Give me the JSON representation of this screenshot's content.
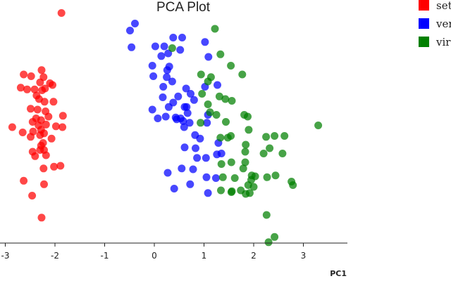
{
  "chart_data": {
    "type": "scatter",
    "title": "PCA Plot",
    "xlabel": "PC1",
    "ylabel": "",
    "xlim": [
      -3.05,
      3.9
    ],
    "ylim": [
      -1.3,
      1.45
    ],
    "xticks": [
      -3,
      -2,
      -1,
      0,
      1,
      2,
      3
    ],
    "xtick_labels": [
      "-3",
      "-2",
      "-1",
      "0",
      "1",
      "2",
      "3"
    ],
    "grid": false,
    "legend": "top-right",
    "series": [
      {
        "name": "setosa",
        "color": "#ff0000",
        "points": [
          [
            -1.87,
            1.3
          ],
          [
            -2.63,
            0.6
          ],
          [
            -2.48,
            0.58
          ],
          [
            -2.27,
            0.65
          ],
          [
            -2.23,
            0.57
          ],
          [
            -2.3,
            0.51
          ],
          [
            -2.1,
            0.5
          ],
          [
            -2.05,
            0.48
          ],
          [
            -2.2,
            0.44
          ],
          [
            -2.26,
            0.42
          ],
          [
            -2.56,
            0.43
          ],
          [
            -2.69,
            0.45
          ],
          [
            -2.41,
            0.43
          ],
          [
            -2.37,
            0.36
          ],
          [
            -2.32,
            0.32
          ],
          [
            -2.21,
            0.29
          ],
          [
            -2.03,
            0.29
          ],
          [
            -2.49,
            0.21
          ],
          [
            -2.35,
            0.2
          ],
          [
            -2.19,
            0.18
          ],
          [
            -2.38,
            0.1
          ],
          [
            -2.28,
            0.08
          ],
          [
            -1.84,
            0.13
          ],
          [
            -2.13,
            0.12
          ],
          [
            -2.45,
            0.06
          ],
          [
            -2.33,
            0.02
          ],
          [
            -2.18,
            0.03
          ],
          [
            -2.86,
            0.0
          ],
          [
            -2.65,
            -0.06
          ],
          [
            -2.44,
            -0.05
          ],
          [
            -2.28,
            -0.03
          ],
          [
            -2.22,
            -0.07
          ],
          [
            -1.98,
            0.01
          ],
          [
            -1.85,
            0.0
          ],
          [
            -2.3,
            -0.09
          ],
          [
            -2.49,
            -0.11
          ],
          [
            -2.07,
            -0.13
          ],
          [
            -2.24,
            -0.18
          ],
          [
            -2.28,
            -0.21
          ],
          [
            -2.3,
            -0.26
          ],
          [
            -2.22,
            -0.26
          ],
          [
            -2.45,
            -0.28
          ],
          [
            -2.18,
            -0.32
          ],
          [
            -2.4,
            -0.33
          ],
          [
            -1.89,
            -0.44
          ],
          [
            -2.02,
            -0.45
          ],
          [
            -2.23,
            -0.47
          ],
          [
            -2.63,
            -0.61
          ],
          [
            -2.22,
            -0.65
          ],
          [
            -2.46,
            -0.78
          ],
          [
            -2.27,
            -1.03
          ]
        ]
      },
      {
        "name": "versicolor",
        "color": "#0000ff",
        "points": [
          [
            -0.12,
            1.54
          ],
          [
            -0.39,
            1.18
          ],
          [
            -0.49,
            1.1
          ],
          [
            -0.46,
            0.91
          ],
          [
            0.38,
            1.02
          ],
          [
            0.56,
            1.02
          ],
          [
            0.2,
            0.92
          ],
          [
            0.02,
            0.92
          ],
          [
            0.28,
            0.84
          ],
          [
            0.14,
            0.81
          ],
          [
            0.52,
            0.88
          ],
          [
            1.02,
            0.97
          ],
          [
            1.09,
            0.8
          ],
          [
            0.3,
            0.69
          ],
          [
            -0.04,
            0.7
          ],
          [
            -0.02,
            0.58
          ],
          [
            0.26,
            0.65
          ],
          [
            0.25,
            0.57
          ],
          [
            0.36,
            0.52
          ],
          [
            0.18,
            0.46
          ],
          [
            0.17,
            0.34
          ],
          [
            1.02,
            0.46
          ],
          [
            1.27,
            0.48
          ],
          [
            0.64,
            0.44
          ],
          [
            0.48,
            0.35
          ],
          [
            0.73,
            0.38
          ],
          [
            0.8,
            0.31
          ],
          [
            0.61,
            0.23
          ],
          [
            0.38,
            0.28
          ],
          [
            0.29,
            0.23
          ],
          [
            0.43,
            0.11
          ],
          [
            0.65,
            0.23
          ],
          [
            -0.04,
            0.2
          ],
          [
            0.07,
            0.1
          ],
          [
            0.23,
            0.12
          ],
          [
            0.45,
            0.09
          ],
          [
            0.53,
            0.1
          ],
          [
            0.67,
            0.16
          ],
          [
            0.58,
            0.07
          ],
          [
            0.71,
            0.05
          ],
          [
            0.6,
            0.0
          ],
          [
            1.08,
            0.14
          ],
          [
            1.06,
            0.05
          ],
          [
            0.82,
            -0.09
          ],
          [
            0.92,
            -0.13
          ],
          [
            0.83,
            -0.24
          ],
          [
            0.61,
            -0.23
          ],
          [
            0.86,
            -0.35
          ],
          [
            1.04,
            -0.35
          ],
          [
            0.78,
            -0.48
          ],
          [
            0.27,
            -0.52
          ],
          [
            0.55,
            -0.47
          ],
          [
            1.35,
            -0.3
          ],
          [
            1.24,
            -0.58
          ],
          [
            1.05,
            -0.57
          ],
          [
            1.29,
            -0.18
          ],
          [
            1.26,
            -0.31
          ],
          [
            0.4,
            -0.7
          ],
          [
            0.72,
            -0.65
          ],
          [
            1.08,
            -0.75
          ]
        ]
      },
      {
        "name": "virginica",
        "color": "#008000",
        "points": [
          [
            1.22,
            1.12
          ],
          [
            0.36,
            0.9
          ],
          [
            1.33,
            0.83
          ],
          [
            1.54,
            0.7
          ],
          [
            0.94,
            0.6
          ],
          [
            1.77,
            0.6
          ],
          [
            1.14,
            0.57
          ],
          [
            1.08,
            0.52
          ],
          [
            1.31,
            0.35
          ],
          [
            1.43,
            0.32
          ],
          [
            1.56,
            0.3
          ],
          [
            0.96,
            0.38
          ],
          [
            1.08,
            0.26
          ],
          [
            1.12,
            0.17
          ],
          [
            1.25,
            0.14
          ],
          [
            1.81,
            0.14
          ],
          [
            1.88,
            0.12
          ],
          [
            1.44,
            0.06
          ],
          [
            0.93,
            0.05
          ],
          [
            1.9,
            -0.03
          ],
          [
            1.33,
            -0.12
          ],
          [
            1.48,
            -0.12
          ],
          [
            1.54,
            -0.1
          ],
          [
            2.25,
            -0.11
          ],
          [
            2.42,
            -0.1
          ],
          [
            2.62,
            -0.1
          ],
          [
            1.84,
            -0.2
          ],
          [
            1.83,
            -0.28
          ],
          [
            2.2,
            -0.3
          ],
          [
            2.32,
            -0.24
          ],
          [
            2.58,
            -0.3
          ],
          [
            3.3,
            0.02
          ],
          [
            1.35,
            -0.42
          ],
          [
            1.55,
            -0.4
          ],
          [
            1.83,
            -0.4
          ],
          [
            1.79,
            -0.47
          ],
          [
            1.38,
            -0.57
          ],
          [
            1.62,
            -0.58
          ],
          [
            1.96,
            -0.55
          ],
          [
            2.03,
            -0.56
          ],
          [
            1.95,
            -0.6
          ],
          [
            2.27,
            -0.57
          ],
          [
            2.44,
            -0.55
          ],
          [
            2.76,
            -0.62
          ],
          [
            2.79,
            -0.66
          ],
          [
            1.89,
            -0.66
          ],
          [
            2.0,
            -0.68
          ],
          [
            1.34,
            -0.72
          ],
          [
            1.55,
            -0.74
          ],
          [
            1.74,
            -0.72
          ],
          [
            1.56,
            -0.73
          ],
          [
            1.84,
            -0.76
          ],
          [
            1.92,
            -0.75
          ],
          [
            2.26,
            -1.0
          ],
          [
            2.42,
            -1.25
          ],
          [
            2.3,
            -1.31
          ]
        ]
      }
    ]
  }
}
